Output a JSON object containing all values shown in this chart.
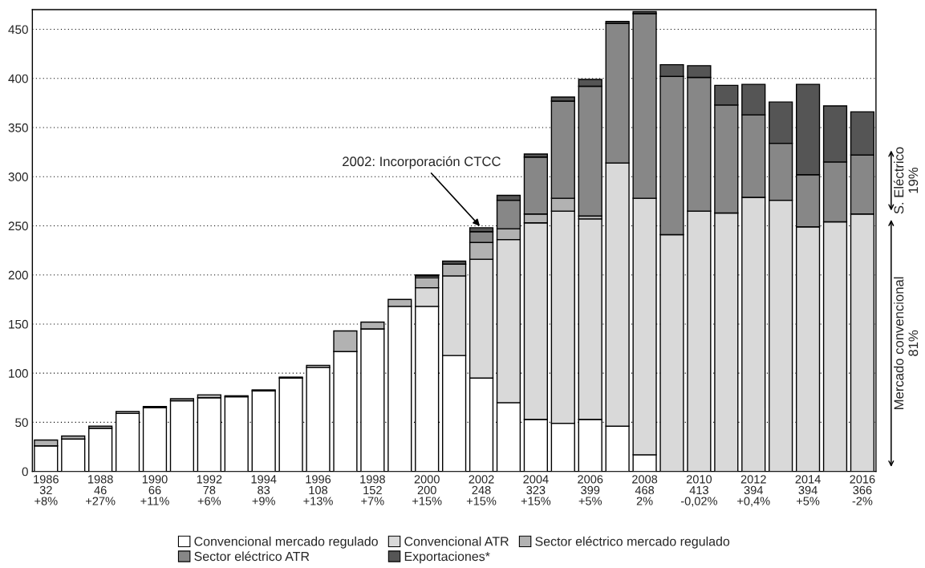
{
  "chart_data": {
    "type": "bar",
    "stacked": true,
    "categories": [
      "1986\n32\n+8%",
      null,
      "1988\n46\n+27%",
      null,
      "1990\n66\n+11%",
      null,
      "1992\n78\n+6%",
      null,
      "1994\n83\n+9%",
      null,
      "1996\n108\n+13%",
      null,
      "1998\n152\n+7%",
      null,
      "2000\n200\n+15%",
      null,
      "2002\n248\n+15%",
      null,
      "2004\n323\n+15%",
      null,
      "2006\n399\n+5%",
      null,
      "2008\n468\n2%",
      null,
      "2010\n413\n-0,02%",
      null,
      "2012\n394\n+0,4%",
      null,
      "2014\n394\n+5%",
      null,
      "2016\n366\n-2%"
    ],
    "series": [
      {
        "name": "Convencional mercado regulado",
        "color": "#ffffff",
        "values": [
          26,
          33,
          44,
          59,
          65,
          72,
          75,
          76,
          82,
          95,
          106,
          122,
          145,
          168,
          168,
          118,
          95,
          70,
          53,
          49,
          53,
          46,
          17,
          null,
          null,
          null,
          null,
          null,
          null,
          null,
          null
        ]
      },
      {
        "name": "Convencional ATR",
        "color": "#d9d9d9",
        "values": [
          null,
          null,
          null,
          null,
          null,
          null,
          null,
          null,
          null,
          null,
          null,
          null,
          null,
          null,
          19,
          81,
          121,
          166,
          200,
          216,
          204,
          268,
          261,
          241,
          265,
          263,
          279,
          276,
          249,
          254,
          262
        ]
      },
      {
        "name": "Sector eléctrico mercado regulado",
        "color": "#b2b2b2",
        "values": [
          6,
          3,
          2,
          2,
          1,
          2,
          3,
          1,
          1,
          1,
          2,
          21,
          7,
          7,
          10,
          12,
          17,
          11,
          9,
          13,
          3,
          null,
          null,
          null,
          null,
          null,
          null,
          null,
          null,
          null,
          null
        ]
      },
      {
        "name": "Sector eléctrico ATR",
        "color": "#878787",
        "values": [
          null,
          null,
          null,
          null,
          null,
          null,
          null,
          null,
          null,
          null,
          null,
          null,
          null,
          null,
          2,
          null,
          11,
          29,
          58,
          99,
          132,
          142,
          188,
          161,
          136,
          110,
          84,
          58,
          53,
          61,
          60
        ]
      },
      {
        "name": "Exportaciones*",
        "color": "#555555",
        "values": [
          null,
          null,
          null,
          null,
          null,
          null,
          null,
          null,
          null,
          null,
          null,
          null,
          null,
          null,
          1,
          3,
          4,
          5,
          3,
          4,
          7,
          2,
          2,
          12,
          12,
          20,
          31,
          42,
          92,
          57,
          44
        ]
      }
    ],
    "ylim": [
      0,
      470
    ],
    "yticks": [
      0,
      50,
      100,
      150,
      200,
      250,
      300,
      350,
      400,
      450
    ],
    "grid": "y",
    "legend": "bottom",
    "annotations": [
      {
        "text": "2002: Incorporación CTCC",
        "x": "2002\n248\n+15%",
        "y": 248
      },
      "S. Eléctrico\n19%",
      "Mercado convencional\n81%"
    ]
  }
}
